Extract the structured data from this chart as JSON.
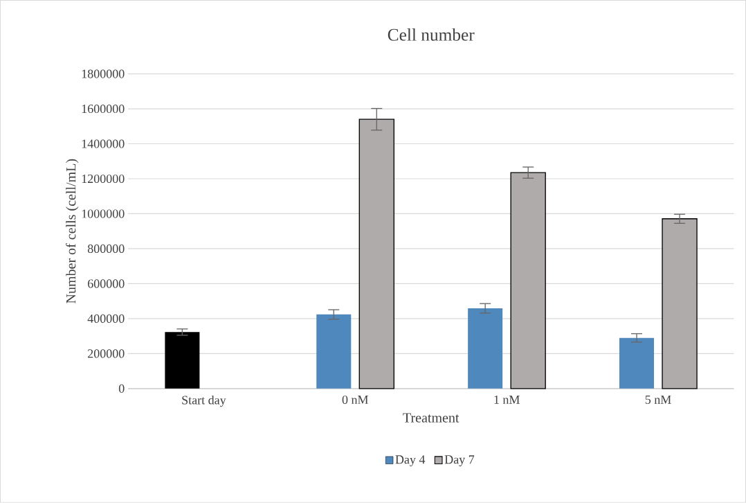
{
  "chart_data": {
    "type": "bar",
    "title": "Cell number",
    "xlabel": "Treatment",
    "ylabel": "Number of cells (cell/mL)",
    "categories": [
      "Start day",
      "0 nM",
      "1 nM",
      "5 nM"
    ],
    "series": [
      {
        "name": "Day 4",
        "color": "#4f88bd",
        "colors": [
          "#000000",
          "#4f88bd",
          "#4f88bd",
          "#4f88bd"
        ],
        "values": [
          323000,
          424000,
          459000,
          290000
        ],
        "errors": [
          18000,
          27000,
          27000,
          24000
        ]
      },
      {
        "name": "Day 7",
        "color": "#afabab",
        "values": [
          null,
          1540000,
          1235000,
          971000
        ],
        "errors": [
          null,
          62000,
          32000,
          26000
        ]
      }
    ],
    "ylim": [
      0,
      1800000
    ],
    "yticks": [
      0,
      200000,
      400000,
      600000,
      800000,
      1000000,
      1200000,
      1400000,
      1600000,
      1800000
    ],
    "grid": "y",
    "legend": "bottom"
  }
}
